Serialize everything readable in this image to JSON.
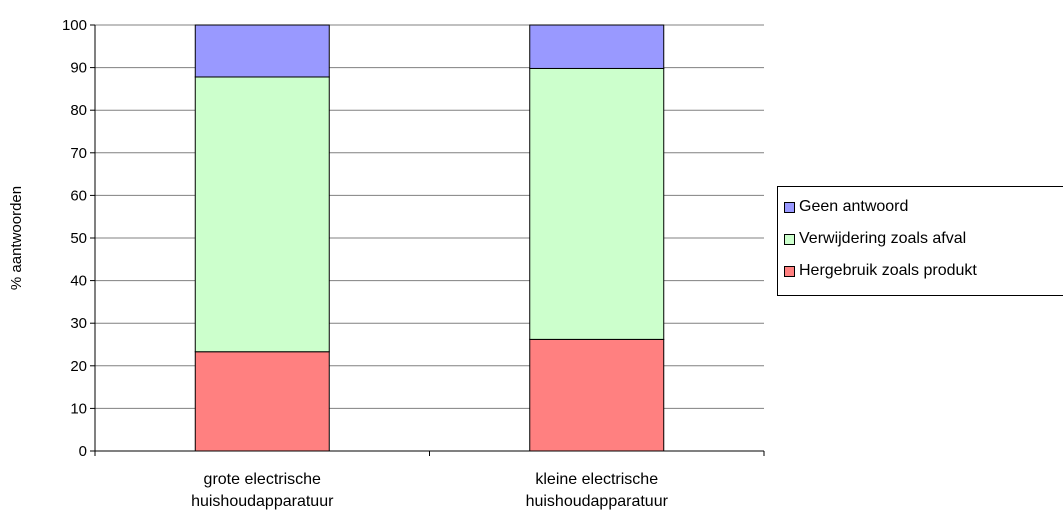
{
  "chart_data": {
    "type": "bar",
    "stacked": true,
    "categories": [
      [
        "grote electrische",
        "huishoudapparatuur"
      ],
      [
        "kleine electrische",
        "huishoudapparatuur"
      ]
    ],
    "series": [
      {
        "name": "Hergebruik zoals produkt",
        "color": "#ff8080",
        "values": [
          23.3,
          26.2
        ]
      },
      {
        "name": "Verwijdering zoals afval",
        "color": "#ccffcc",
        "values": [
          64.5,
          63.6
        ]
      },
      {
        "name": "Geen antwoord",
        "color": "#9999ff",
        "values": [
          12.2,
          10.2
        ]
      }
    ],
    "xlabel": "",
    "ylabel": "% aantwoorden",
    "ylim": [
      0,
      100
    ],
    "yticks": [
      0,
      10,
      20,
      30,
      40,
      50,
      60,
      70,
      80,
      90,
      100
    ],
    "grid": true,
    "legend_position": "right",
    "legend_order": [
      "Geen antwoord",
      "Verwijdering zoals afval",
      "Hergebruik zoals produkt"
    ]
  }
}
